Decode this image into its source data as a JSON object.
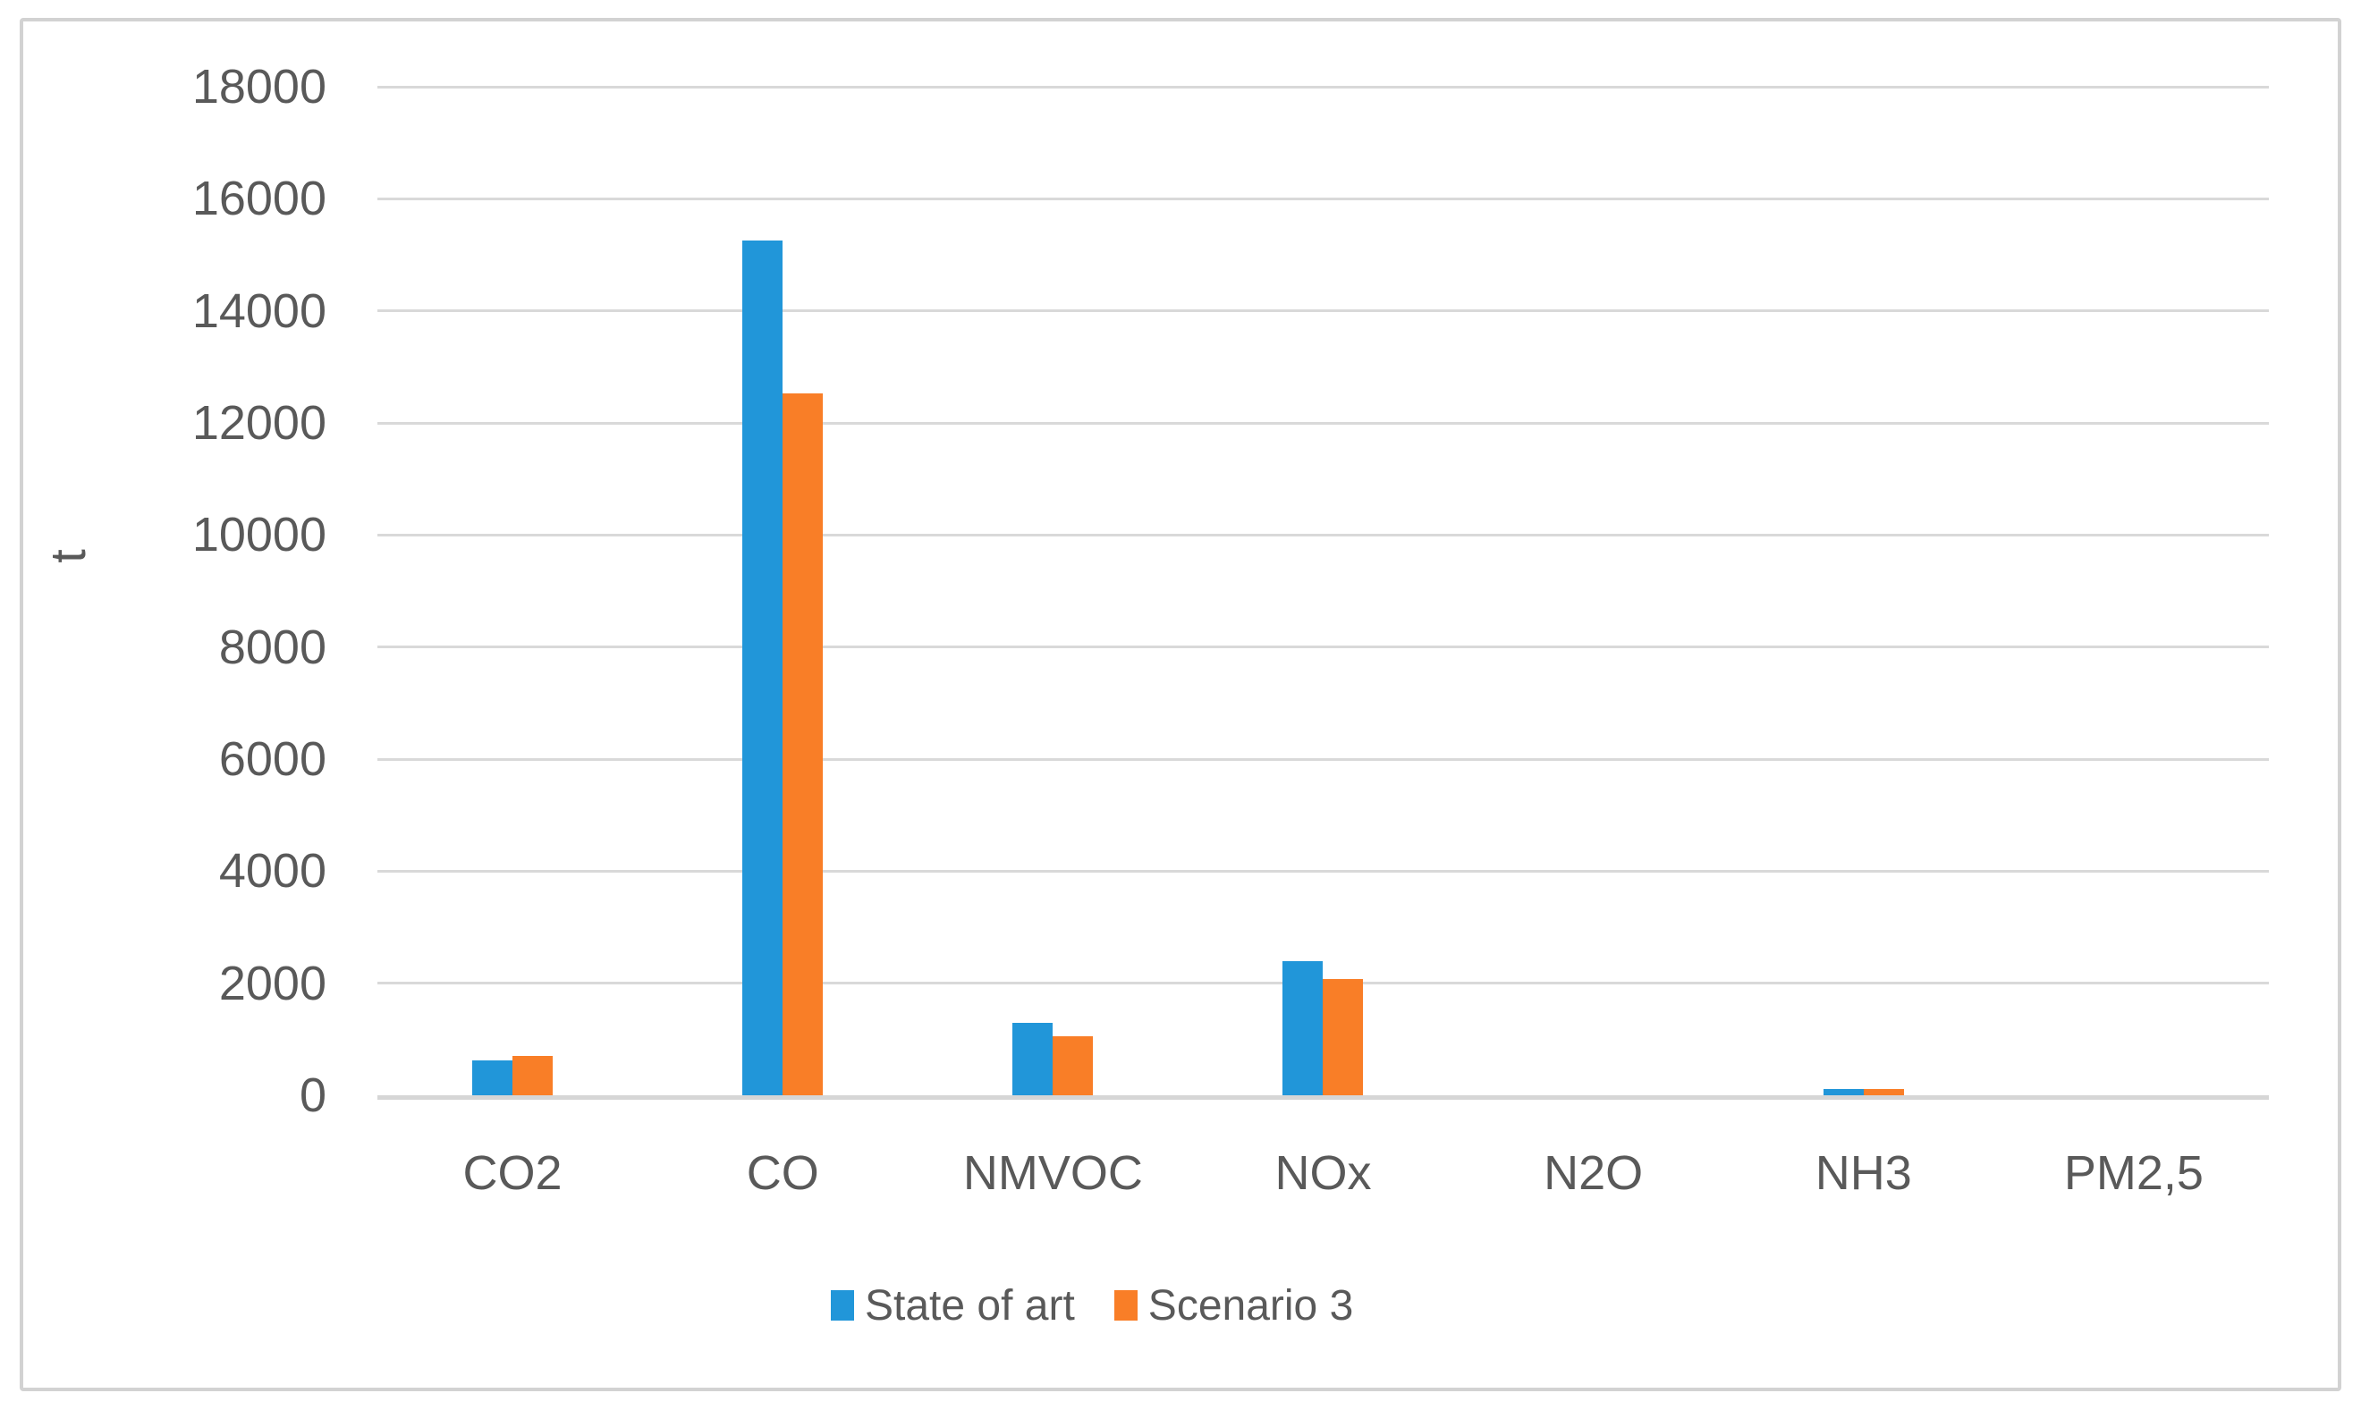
{
  "figure": {
    "background": "#FFFFFF",
    "border_color": "#D2D2D2"
  },
  "chart_data": {
    "type": "bar",
    "title": "",
    "xlabel": "",
    "ylabel": "t",
    "ylim": [
      0,
      18000
    ],
    "ytick_step": 2000,
    "yticks": [
      0,
      2000,
      4000,
      6000,
      8000,
      10000,
      12000,
      14000,
      16000,
      18000
    ],
    "grid": true,
    "gridline_color": "#D9D9D9",
    "axis_line_color": "#D6D6D6",
    "axis_text_color": "#595959",
    "legend_position": "bottom",
    "categories": [
      "CO2",
      "CO",
      "NMVOC",
      "NOx",
      "N2O",
      "NH3",
      "PM2,5"
    ],
    "series": [
      {
        "name": "State of art",
        "color": "#2196D9",
        "values": [
          620,
          15250,
          1300,
          2400,
          0,
          110,
          0
        ]
      },
      {
        "name": "Scenario 3",
        "color": "#F97E27",
        "values": [
          700,
          12530,
          1050,
          2080,
          0,
          110,
          0
        ]
      }
    ]
  }
}
